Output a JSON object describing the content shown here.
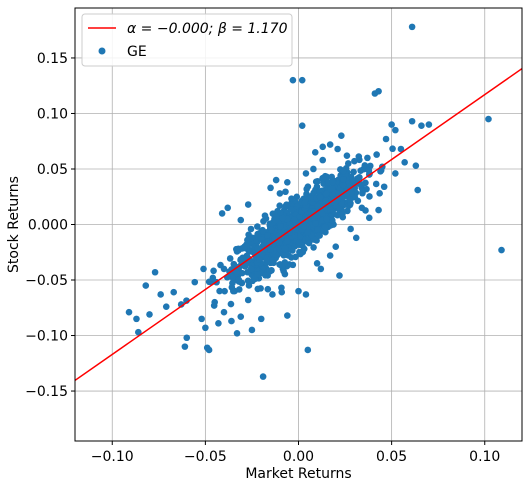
{
  "chart_data": {
    "type": "scatter",
    "title": "",
    "xlabel": "Market Returns",
    "ylabel": "Stock Returns",
    "xlim": [
      -0.12,
      0.12
    ],
    "ylim": [
      -0.195,
      0.195
    ],
    "xticks": [
      -0.1,
      -0.05,
      0.0,
      0.05,
      0.1
    ],
    "xtick_labels": [
      "−0.10",
      "−0.05",
      "0.00",
      "0.05",
      "0.10"
    ],
    "yticks": [
      -0.15,
      -0.1,
      -0.05,
      0.0,
      0.05,
      0.1,
      0.15
    ],
    "ytick_labels": [
      "−0.15",
      "−0.10",
      "−0.05",
      "0.000",
      "0.05",
      "0.10",
      "0.15"
    ],
    "grid": true,
    "legend_position": "top-left",
    "series": [
      {
        "name": "GE",
        "kind": "scatter",
        "color": "#1f77b4",
        "points": [
          [
            0.061,
            0.178
          ],
          [
            0.102,
            0.095
          ],
          [
            0.109,
            -0.023
          ],
          [
            -0.019,
            -0.137
          ],
          [
            -0.091,
            -0.079
          ],
          [
            -0.087,
            -0.085
          ],
          [
            -0.086,
            -0.097
          ],
          [
            -0.077,
            -0.043
          ],
          [
            -0.082,
            -0.055
          ],
          [
            -0.08,
            -0.081
          ],
          [
            -0.074,
            -0.063
          ],
          [
            -0.071,
            -0.074
          ],
          [
            -0.067,
            -0.061
          ],
          [
            -0.063,
            -0.072
          ],
          [
            -0.06,
            -0.102
          ],
          [
            -0.061,
            -0.11
          ],
          [
            -0.052,
            -0.085
          ],
          [
            -0.05,
            -0.093
          ],
          [
            -0.049,
            -0.111
          ],
          [
            -0.048,
            -0.113
          ],
          [
            -0.044,
            -0.052
          ],
          [
            -0.043,
            -0.089
          ],
          [
            -0.045,
            -0.07
          ],
          [
            -0.04,
            -0.079
          ],
          [
            -0.036,
            -0.087
          ],
          [
            -0.033,
            -0.098
          ],
          [
            -0.031,
            -0.083
          ],
          [
            -0.025,
            -0.095
          ],
          [
            -0.02,
            -0.085
          ],
          [
            -0.014,
            -0.063
          ],
          [
            -0.009,
            -0.061
          ],
          [
            -0.006,
            -0.082
          ],
          [
            0.0,
            -0.06
          ],
          [
            0.004,
            -0.063
          ],
          [
            0.005,
            -0.113
          ],
          [
            0.012,
            -0.04
          ],
          [
            0.022,
            -0.046
          ],
          [
            -0.051,
            -0.04
          ],
          [
            -0.041,
            0.01
          ],
          [
            -0.038,
            0.015
          ],
          [
            -0.031,
            0.004
          ],
          [
            -0.027,
            0.018
          ],
          [
            -0.015,
            0.033
          ],
          [
            -0.003,
            0.13
          ],
          [
            0.002,
            0.13
          ],
          [
            0.002,
            0.089
          ],
          [
            0.009,
            0.065
          ],
          [
            0.013,
            0.07
          ],
          [
            0.023,
            0.08
          ],
          [
            0.03,
            0.057
          ],
          [
            0.037,
            0.06
          ],
          [
            0.041,
            0.118
          ],
          [
            0.043,
            0.12
          ],
          [
            0.047,
            0.077
          ],
          [
            0.05,
            0.09
          ],
          [
            0.052,
            0.085
          ],
          [
            0.055,
            0.068
          ],
          [
            0.061,
            0.093
          ],
          [
            0.066,
            0.089
          ],
          [
            0.07,
            0.09
          ],
          [
            0.057,
            0.056
          ],
          [
            0.063,
            0.053
          ],
          [
            0.052,
            0.046
          ],
          [
            0.064,
            0.031
          ],
          [
            0.046,
            0.034
          ],
          [
            0.043,
            0.013
          ],
          [
            0.038,
            0.006
          ],
          [
            0.034,
            0.015
          ],
          [
            0.021,
            0.068
          ],
          [
            0.026,
            0.062
          ],
          [
            0.013,
            0.058
          ],
          [
            0.017,
            0.072
          ],
          [
            0.028,
            -0.004
          ],
          [
            0.031,
            -0.012
          ],
          [
            0.02,
            -0.02
          ],
          [
            0.017,
            -0.028
          ],
          [
            0.01,
            -0.035
          ],
          [
            -0.018,
            0.008
          ],
          [
            -0.025,
            -0.012
          ],
          [
            -0.029,
            -0.02
          ],
          [
            0.045,
            0.052
          ],
          [
            0.038,
            0.045
          ],
          [
            0.034,
            0.036
          ],
          [
            0.029,
            0.04
          ],
          [
            0.024,
            0.048
          ],
          [
            0.008,
            0.05
          ],
          [
            0.004,
            0.046
          ],
          [
            -0.006,
            0.038
          ],
          [
            -0.01,
            0.028
          ],
          [
            -0.012,
            0.04
          ],
          [
            0.015,
            0.005
          ],
          [
            0.011,
            -0.01
          ],
          [
            -0.022,
            -0.045
          ],
          [
            -0.032,
            -0.05
          ],
          [
            -0.035,
            -0.06
          ],
          [
            -0.027,
            -0.068
          ],
          [
            -0.04,
            -0.04
          ],
          [
            -0.046,
            -0.048
          ],
          [
            -0.03,
            -0.03
          ],
          [
            -0.008,
            -0.042
          ]
        ]
      },
      {
        "name": "α = −0.000; β = 1.170",
        "kind": "line",
        "color": "#ff0000",
        "alpha": 0.0,
        "beta": 1.17
      }
    ],
    "cloud": {
      "count": 1200,
      "beta": 1.17,
      "x_spread": 0.016,
      "y_noise": 0.0115
    }
  },
  "legend": {
    "line_label_prefix": "α = −0.000; β = 1.170",
    "scatter_label": "GE"
  }
}
